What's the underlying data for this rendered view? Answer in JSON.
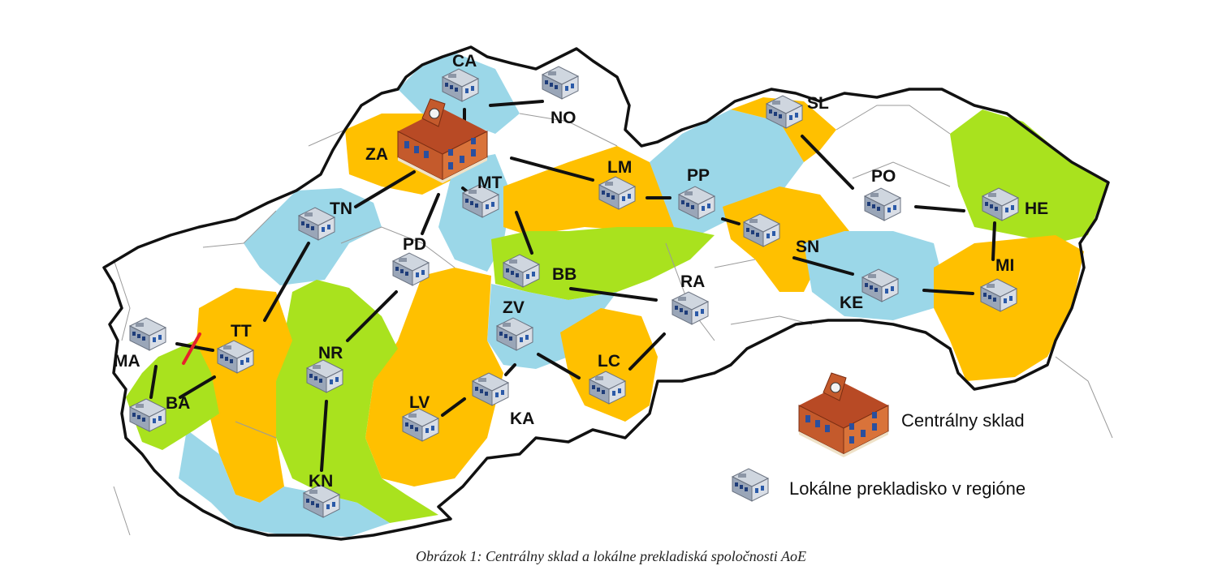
{
  "regions": {
    "CA": "CA",
    "NO": "NO",
    "ZA": "ZA",
    "MT": "MT",
    "LM": "LM",
    "PP": "PP",
    "SL": "SL",
    "PO": "PO",
    "HE": "HE",
    "TN": "TN",
    "PD": "PD",
    "BB": "BB",
    "RA": "RA",
    "SN": "SN",
    "KE": "KE",
    "MI": "MI",
    "TT": "TT",
    "NR": "NR",
    "ZV": "ZV",
    "MA": "MA",
    "BA": "BA",
    "LC": "LC",
    "LV": "LV",
    "KA": "KA",
    "KN": "KN"
  },
  "legend": {
    "central": "Centrálny sklad",
    "local": "Lokálne prekladisko v regióne"
  },
  "caption": "Obrázok 1: Centrálny sklad a lokálne prekladiská spoločnosti AoE",
  "colors": {
    "orange": "#FFC000",
    "blue": "#9BD7E8",
    "green": "#A9E21E",
    "white": "#FFFFFF",
    "border": "#111111",
    "cut": "#E8222B"
  }
}
